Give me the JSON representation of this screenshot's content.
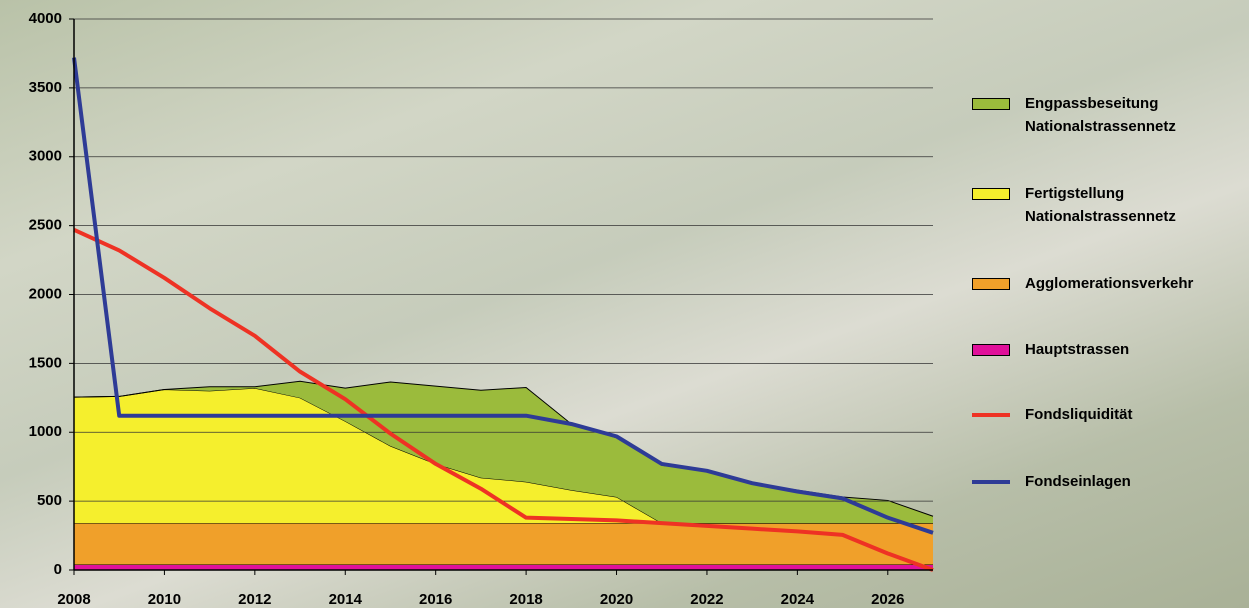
{
  "chart_data": {
    "type": "stacked-area-line",
    "x": [
      2008,
      2009,
      2010,
      2011,
      2012,
      2013,
      2014,
      2015,
      2016,
      2017,
      2018,
      2019,
      2020,
      2021,
      2022,
      2023,
      2024,
      2025,
      2026,
      2027
    ],
    "xlim": [
      2008,
      2027
    ],
    "xticks": [
      2008,
      2010,
      2012,
      2014,
      2016,
      2018,
      2020,
      2022,
      2024,
      2026
    ],
    "ylim": [
      0,
      4000
    ],
    "yticks": [
      0,
      500,
      1000,
      1500,
      2000,
      2500,
      3000,
      3500,
      4000
    ],
    "grid": true,
    "series": [
      {
        "name": "Engpassbeseitung Nationalstrassennetz",
        "type": "area",
        "color": "#9bbb3c",
        "values": [
          0,
          0,
          0,
          30,
          10,
          120,
          240,
          465,
          565,
          635,
          685,
          480,
          430,
          420,
          380,
          290,
          240,
          190,
          165,
          50
        ]
      },
      {
        "name": "Fertigstellung Nationalstrassennetz",
        "type": "area",
        "color": "#f5ef2d",
        "values": [
          915,
          920,
          970,
          960,
          980,
          910,
          740,
          560,
          430,
          330,
          300,
          240,
          190,
          0,
          0,
          0,
          0,
          0,
          0,
          0
        ]
      },
      {
        "name": "Agglomerationsverkehr",
        "type": "area",
        "color": "#f0a02a",
        "values": [
          300,
          300,
          300,
          300,
          300,
          300,
          300,
          300,
          300,
          300,
          300,
          300,
          300,
          300,
          300,
          300,
          300,
          300,
          300,
          300
        ]
      },
      {
        "name": "Hauptstrassen",
        "type": "area",
        "color": "#e0109a",
        "values": [
          40,
          40,
          40,
          40,
          40,
          40,
          40,
          40,
          40,
          40,
          40,
          40,
          40,
          40,
          40,
          40,
          40,
          40,
          40,
          40
        ]
      },
      {
        "name": "Fondsliquidität",
        "type": "line",
        "color": "#ee3224",
        "values": [
          2470,
          2320,
          2120,
          1900,
          1700,
          1440,
          1240,
          990,
          770,
          590,
          380,
          370,
          360,
          340,
          320,
          300,
          280,
          255,
          120,
          0
        ]
      },
      {
        "name": "Fondseinlagen",
        "type": "line",
        "color": "#2e3b96",
        "values": [
          3720,
          1120,
          1120,
          1120,
          1120,
          1120,
          1120,
          1120,
          1120,
          1120,
          1120,
          1060,
          970,
          770,
          720,
          630,
          570,
          520,
          380,
          270
        ]
      }
    ]
  }
}
